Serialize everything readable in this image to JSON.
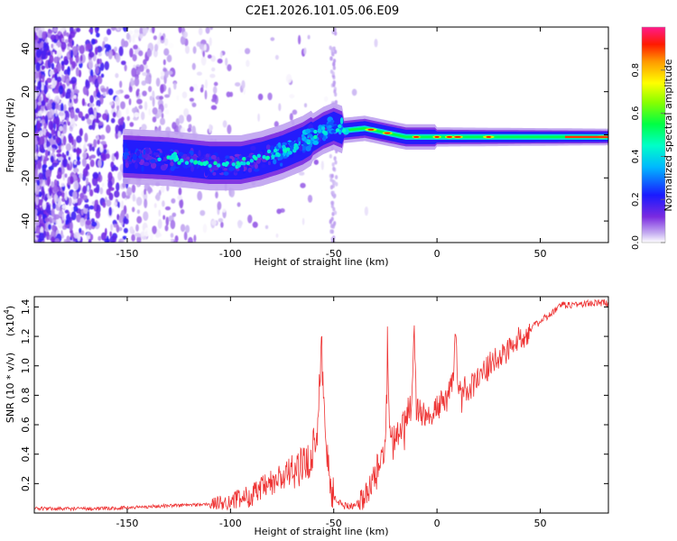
{
  "chart_data": [
    {
      "type": "heatmap",
      "title": "C2E1.2026.101.05.06.E09",
      "xlabel": "Height of straight line (km)",
      "ylabel": "Frequency (Hz)",
      "xlim": [
        -195,
        83
      ],
      "ylim": [
        -50,
        50
      ],
      "xticks": [
        -150,
        -100,
        -50,
        0,
        50
      ],
      "xtick_labels": [
        "-150",
        "-100",
        "-50",
        "0",
        "50"
      ],
      "yticks": [
        -40,
        -20,
        0,
        20,
        40
      ],
      "ytick_labels": [
        "-40",
        "-20",
        "0",
        "20",
        "40"
      ],
      "ridge": {
        "x": [
          -152,
          -130,
          -110,
          -95,
          -85,
          -75,
          -65,
          -55,
          -50,
          -45,
          -35,
          -25,
          -15,
          -5,
          0,
          10,
          20,
          40,
          60,
          83
        ],
        "freq": [
          -10,
          -11,
          -13,
          -13,
          -11,
          -8,
          -4,
          2,
          4,
          2,
          3,
          1,
          -1,
          -1,
          -1,
          -1,
          -1,
          -1,
          -1,
          -1
        ]
      },
      "colorbar": {
        "label": "Normalized spectral amplitude",
        "range": [
          0,
          1
        ],
        "ticks": [
          0.0,
          0.2,
          0.4,
          0.6,
          0.8
        ],
        "tick_labels": [
          "0.0",
          "0.2",
          "0.4",
          "0.6",
          "0.8"
        ]
      }
    },
    {
      "type": "line",
      "title": "",
      "xlabel": "Height of straight line (km)",
      "ylabel": "SNR (10 * v/v)",
      "multiplier": "(x10",
      "multiplier_exp": "4",
      "multiplier_close": ")",
      "xlim": [
        -195,
        83
      ],
      "ylim": [
        0,
        1.47
      ],
      "xticks": [
        -150,
        -100,
        -50,
        0,
        50
      ],
      "xtick_labels": [
        "-150",
        "-100",
        "-50",
        "0",
        "50"
      ],
      "yticks": [
        0.2,
        0.4,
        0.6,
        0.8,
        1.0,
        1.2,
        1.4
      ],
      "ytick_labels": [
        "0.2",
        "0.4",
        "0.6",
        "0.8",
        "1.0",
        "1.2",
        "1.4"
      ],
      "series": [
        {
          "name": "SNR",
          "color": "#ee3333",
          "x": [
            -195,
            -160,
            -130,
            -110,
            -100,
            -90,
            -80,
            -70,
            -62,
            -58,
            -56,
            -55,
            -54,
            -52,
            -50,
            -45,
            -40,
            -35,
            -32,
            -28,
            -25,
            -24,
            -23,
            -20,
            -15,
            -12,
            -11,
            -10,
            -5,
            0,
            5,
            8,
            9,
            10,
            15,
            20,
            25,
            30,
            35,
            40,
            45,
            50,
            55,
            60,
            70,
            83
          ],
          "y": [
            0.03,
            0.03,
            0.05,
            0.06,
            0.08,
            0.12,
            0.2,
            0.28,
            0.35,
            0.55,
            1.2,
            0.75,
            0.5,
            0.25,
            0.1,
            0.05,
            0.05,
            0.1,
            0.2,
            0.35,
            0.45,
            1.22,
            0.6,
            0.5,
            0.65,
            0.8,
            1.28,
            0.7,
            0.65,
            0.72,
            0.78,
            0.9,
            1.27,
            0.85,
            0.85,
            0.9,
            1.0,
            1.05,
            1.12,
            1.18,
            1.25,
            1.3,
            1.35,
            1.41,
            1.42,
            1.43
          ]
        }
      ]
    }
  ]
}
